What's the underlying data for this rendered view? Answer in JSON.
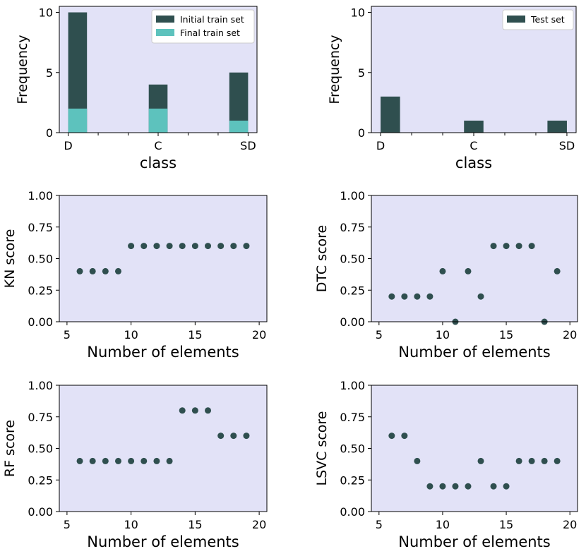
{
  "colors": {
    "panel_bg": "#e2e2f7",
    "initial_train": "#2f4f4f",
    "final_train": "#5dc2bd",
    "test": "#2f4f4f",
    "point": "#2f4f4f"
  },
  "chart_data": [
    {
      "type": "bar",
      "xlabel": "class",
      "ylabel": "Frequency",
      "categories": [
        "D",
        "C",
        "SD"
      ],
      "ylim": [
        0,
        10.5
      ],
      "yticks": [
        0,
        5,
        10
      ],
      "legend": "top-right",
      "series": [
        {
          "name": "Initial train set",
          "values": [
            10,
            4,
            5
          ]
        },
        {
          "name": "Final train set",
          "values": [
            2,
            2,
            1
          ]
        }
      ]
    },
    {
      "type": "bar",
      "xlabel": "class",
      "ylabel": "Frequency",
      "categories": [
        "D",
        "C",
        "SD"
      ],
      "ylim": [
        0,
        10.5
      ],
      "yticks": [
        0,
        5,
        10
      ],
      "legend": "top-right",
      "series": [
        {
          "name": "Test set",
          "values": [
            3,
            1,
            1
          ]
        }
      ]
    },
    {
      "type": "scatter",
      "xlabel": "Number of elements",
      "ylabel": "KN score",
      "xlim": [
        4.4,
        20.6
      ],
      "ylim": [
        0,
        1
      ],
      "xticks": [
        5,
        10,
        15,
        20
      ],
      "yticks": [
        "0.00",
        "0.25",
        "0.50",
        "0.75",
        "1.00"
      ],
      "x": [
        6,
        7,
        8,
        9,
        10,
        11,
        12,
        13,
        14,
        15,
        16,
        17,
        18,
        19
      ],
      "y": [
        0.4,
        0.4,
        0.4,
        0.4,
        0.6,
        0.6,
        0.6,
        0.6,
        0.6,
        0.6,
        0.6,
        0.6,
        0.6,
        0.6
      ]
    },
    {
      "type": "scatter",
      "xlabel": "Number of elements",
      "ylabel": "DTC score",
      "xlim": [
        4.4,
        20.6
      ],
      "ylim": [
        0,
        1
      ],
      "xticks": [
        5,
        10,
        15,
        20
      ],
      "yticks": [
        "0.00",
        "0.25",
        "0.50",
        "0.75",
        "1.00"
      ],
      "x": [
        6,
        7,
        8,
        9,
        10,
        11,
        12,
        13,
        14,
        15,
        16,
        17,
        18,
        19
      ],
      "y": [
        0.2,
        0.2,
        0.2,
        0.2,
        0.4,
        0.0,
        0.4,
        0.2,
        0.6,
        0.6,
        0.6,
        0.6,
        0.0,
        0.4
      ]
    },
    {
      "type": "scatter",
      "xlabel": "Number of elements",
      "ylabel": "RF score",
      "xlim": [
        4.4,
        20.6
      ],
      "ylim": [
        0,
        1
      ],
      "xticks": [
        5,
        10,
        15,
        20
      ],
      "yticks": [
        "0.00",
        "0.25",
        "0.50",
        "0.75",
        "1.00"
      ],
      "x": [
        6,
        7,
        8,
        9,
        10,
        11,
        12,
        13,
        14,
        15,
        16,
        17,
        18,
        19
      ],
      "y": [
        0.4,
        0.4,
        0.4,
        0.4,
        0.4,
        0.4,
        0.4,
        0.4,
        0.8,
        0.8,
        0.8,
        0.6,
        0.6,
        0.6
      ]
    },
    {
      "type": "scatter",
      "xlabel": "Number of elements",
      "ylabel": "LSVC score",
      "xlim": [
        4.4,
        20.6
      ],
      "ylim": [
        0,
        1
      ],
      "xticks": [
        5,
        10,
        15,
        20
      ],
      "yticks": [
        "0.00",
        "0.25",
        "0.50",
        "0.75",
        "1.00"
      ],
      "x": [
        6,
        7,
        8,
        9,
        10,
        11,
        12,
        13,
        14,
        15,
        16,
        17,
        18,
        19
      ],
      "y": [
        0.6,
        0.6,
        0.4,
        0.2,
        0.2,
        0.2,
        0.2,
        0.4,
        0.2,
        0.2,
        0.4,
        0.4,
        0.4,
        0.4
      ]
    }
  ]
}
